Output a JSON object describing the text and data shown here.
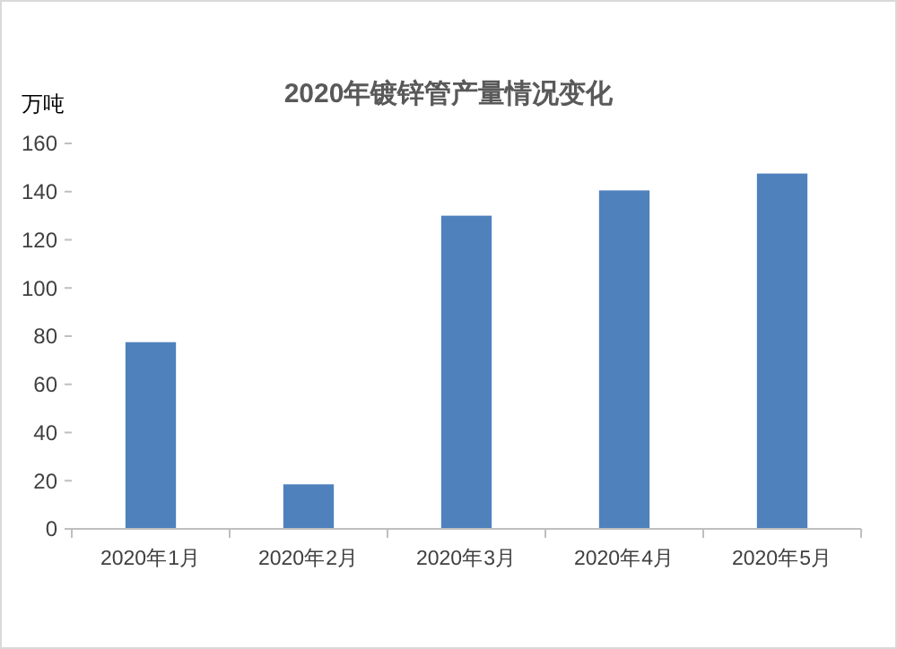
{
  "chart_data": {
    "type": "bar",
    "title": "2020年镀锌管产量情况变化",
    "ylabel": "万吨",
    "categories": [
      "2020年1月",
      "2020年2月",
      "2020年3月",
      "2020年4月",
      "2020年5月"
    ],
    "values": [
      77.5,
      18.5,
      130,
      140.5,
      147.5
    ],
    "color": "#4f81bd",
    "ylim": [
      0,
      160
    ],
    "yticks": [
      0,
      20,
      40,
      60,
      80,
      100,
      120,
      140,
      160
    ],
    "grid": false
  }
}
